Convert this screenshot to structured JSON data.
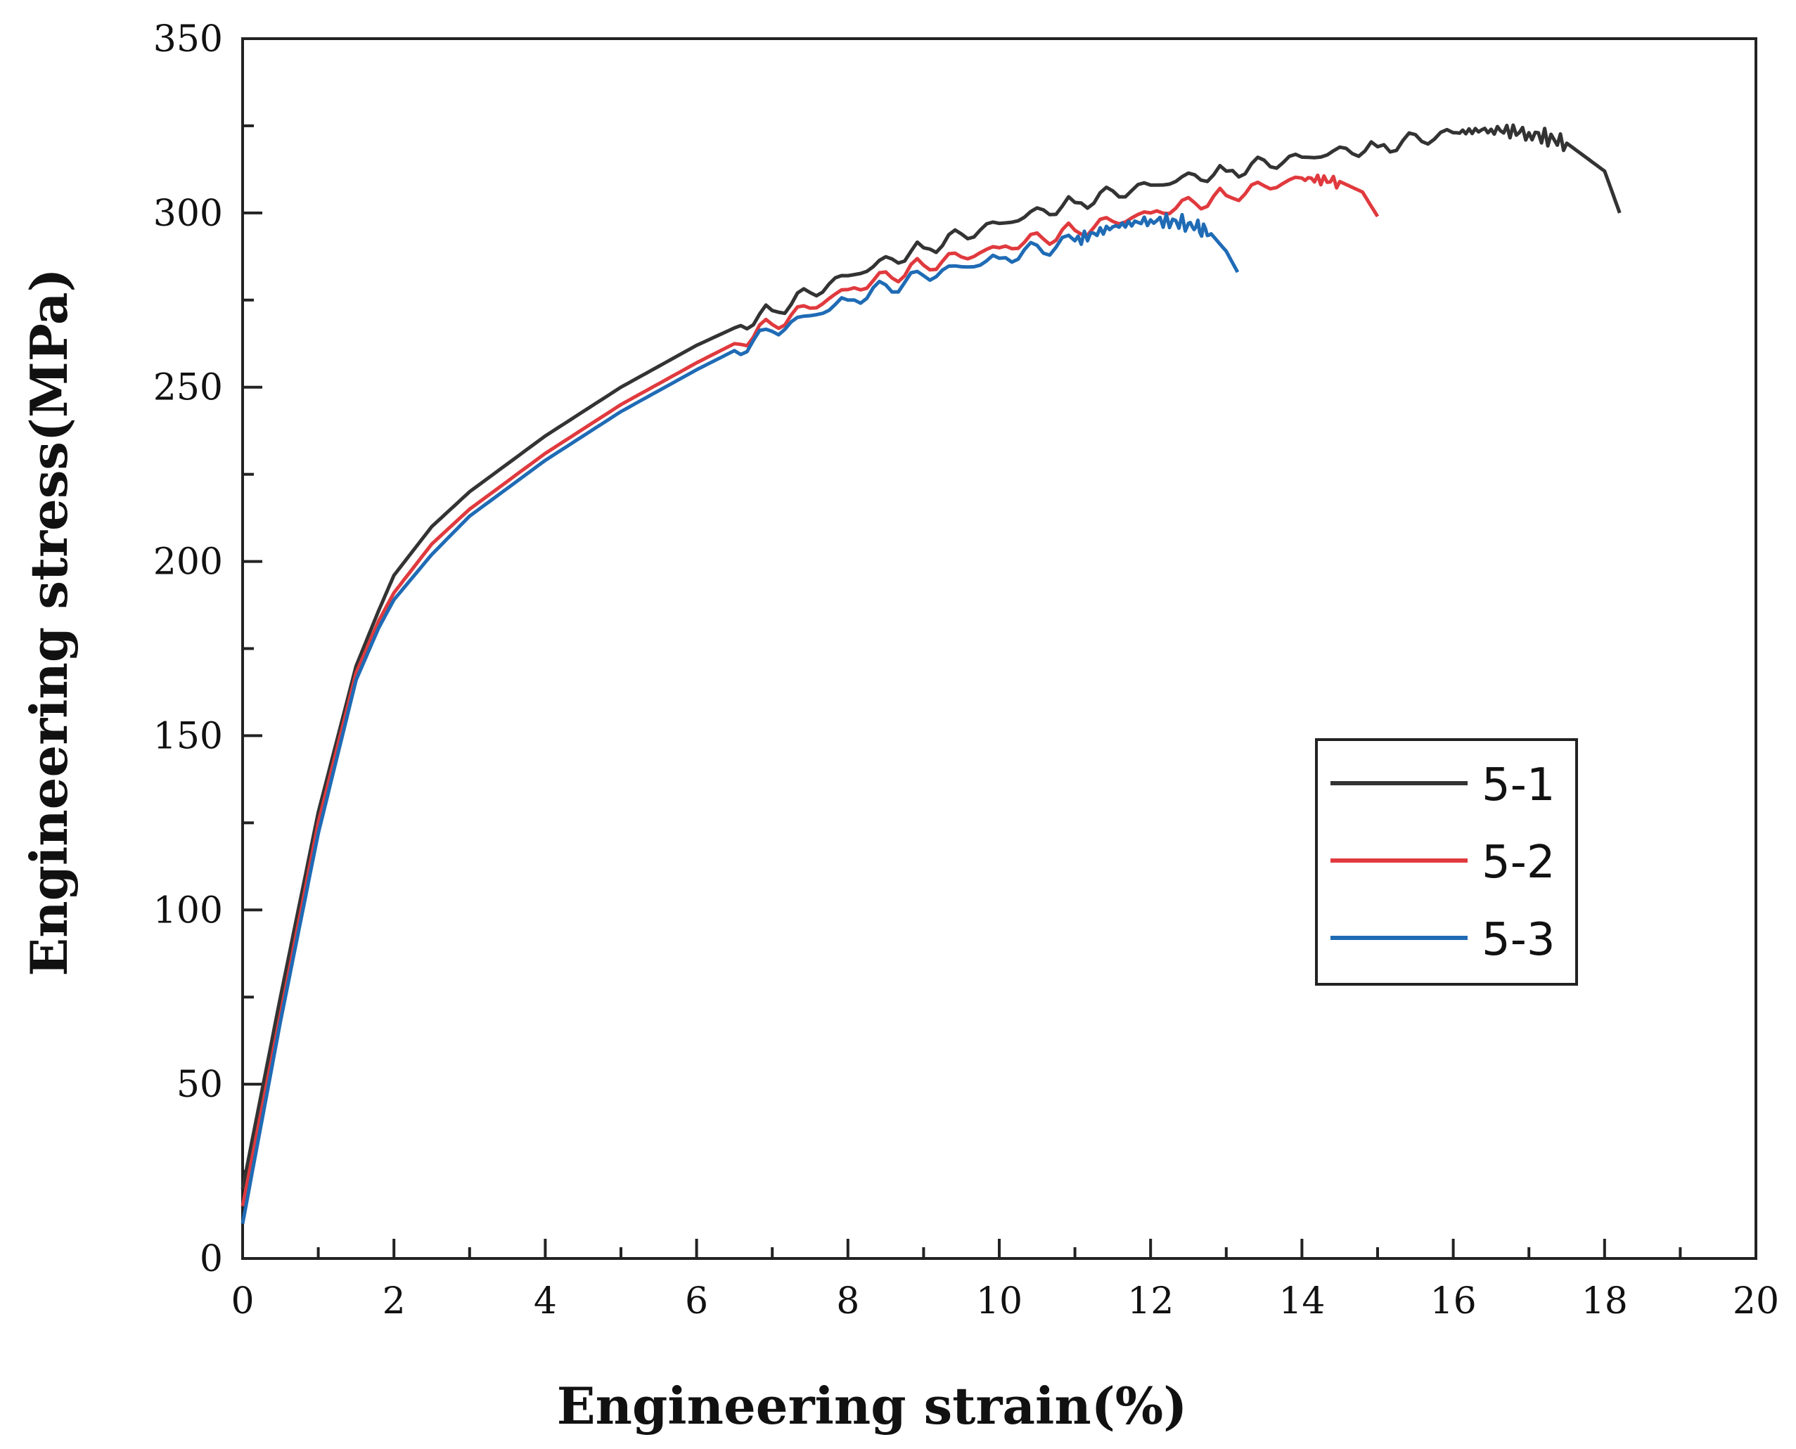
{
  "chart_data": {
    "type": "line",
    "title": "",
    "xlabel": "Engineering strain(%)",
    "ylabel": "Engineering stress(MPa)",
    "xlim": [
      0,
      20
    ],
    "ylim": [
      0,
      350
    ],
    "xticks": [
      0,
      2,
      4,
      6,
      8,
      10,
      12,
      14,
      16,
      18,
      20
    ],
    "yticks": [
      0,
      50,
      100,
      150,
      200,
      250,
      300,
      350
    ],
    "xtick_labels": [
      "0",
      "2",
      "4",
      "6",
      "8",
      "10",
      "12",
      "14",
      "16",
      "18",
      "20"
    ],
    "ytick_labels": [
      "0",
      "50",
      "100",
      "150",
      "200",
      "250",
      "300",
      "350"
    ],
    "grid": false,
    "legend_position": "center-right",
    "series": [
      {
        "name": "5-1",
        "color": "#333333",
        "x": [
          0,
          0.5,
          1.0,
          1.5,
          1.8,
          2.0,
          2.5,
          3.0,
          4.0,
          5.0,
          6.0,
          7.0,
          8.0,
          9.0,
          10.0,
          11.0,
          12.0,
          13.0,
          14.0,
          15.0,
          16.0,
          16.5,
          17.0,
          17.5,
          18.0,
          18.2
        ],
        "y": [
          20,
          75,
          128,
          170,
          186,
          196,
          210,
          220,
          236,
          250,
          262,
          272,
          282,
          290,
          297,
          303,
          308,
          312,
          316,
          319,
          323,
          324,
          323,
          320,
          312,
          300
        ]
      },
      {
        "name": "5-2",
        "color": "#e03a3e",
        "x": [
          0,
          0.5,
          1.0,
          1.5,
          1.8,
          2.0,
          2.5,
          3.0,
          4.0,
          5.0,
          6.0,
          7.0,
          8.0,
          9.0,
          10.0,
          11.0,
          12.0,
          13.0,
          14.0,
          14.5,
          14.8,
          15.0
        ],
        "y": [
          15,
          70,
          125,
          168,
          183,
          191,
          205,
          215,
          231,
          245,
          257,
          268,
          278,
          285,
          290,
          295,
          300,
          305,
          310,
          309,
          306,
          299
        ]
      },
      {
        "name": "5-3",
        "color": "#1f6bb5",
        "x": [
          0,
          0.5,
          1.0,
          1.5,
          1.8,
          2.0,
          2.5,
          3.0,
          4.0,
          5.0,
          6.0,
          7.0,
          8.0,
          9.0,
          10.0,
          11.0,
          11.5,
          12.0,
          12.5,
          12.8,
          13.0,
          13.15
        ],
        "y": [
          10,
          68,
          122,
          166,
          181,
          189,
          202,
          213,
          229,
          243,
          255,
          266,
          275,
          282,
          287,
          292,
          296,
          298,
          297,
          294,
          289,
          283
        ]
      }
    ]
  }
}
